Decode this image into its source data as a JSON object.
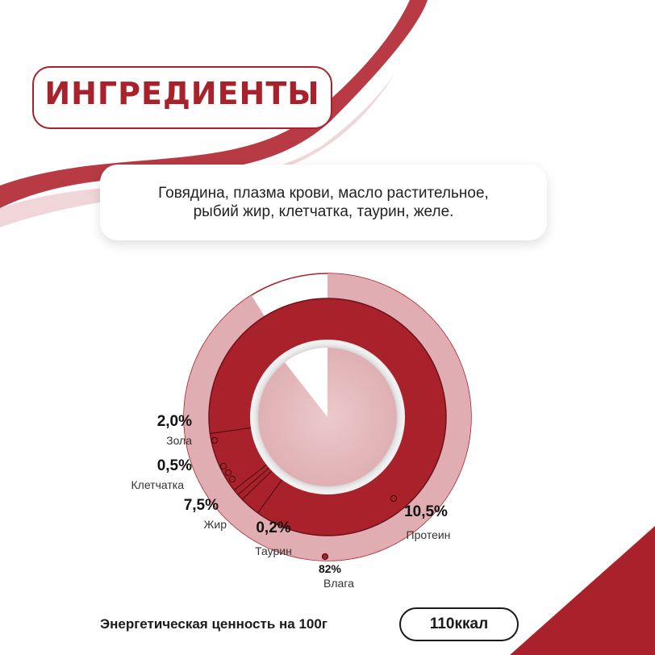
{
  "header": {
    "title": "ИНГРЕДИЕНТЫ"
  },
  "ingredients": {
    "line1": "Говядина, плазма крови, масло растительное,",
    "line2": "рыбий жир, клетчатка, таурин, желе."
  },
  "energy": {
    "label": "Энергетическая ценность на 100г",
    "value": "110ккал"
  },
  "colors": {
    "accent": "#a8212b",
    "pink": "#e0aeb2",
    "light_pink": "#e8c4c6"
  },
  "chart_data": {
    "type": "pie",
    "title": "",
    "slices": [
      {
        "label": "Влага",
        "value": 82,
        "display": "82%"
      },
      {
        "label": "Протеин",
        "value": 10.5,
        "display": "10,5%"
      },
      {
        "label": "Жир",
        "value": 7.5,
        "display": "7,5%"
      },
      {
        "label": "Зола",
        "value": 2.0,
        "display": "2,0%"
      },
      {
        "label": "Клетчатка",
        "value": 0.5,
        "display": "0,5%"
      },
      {
        "label": "Таурин",
        "value": 0.2,
        "display": "0,2%"
      }
    ]
  }
}
